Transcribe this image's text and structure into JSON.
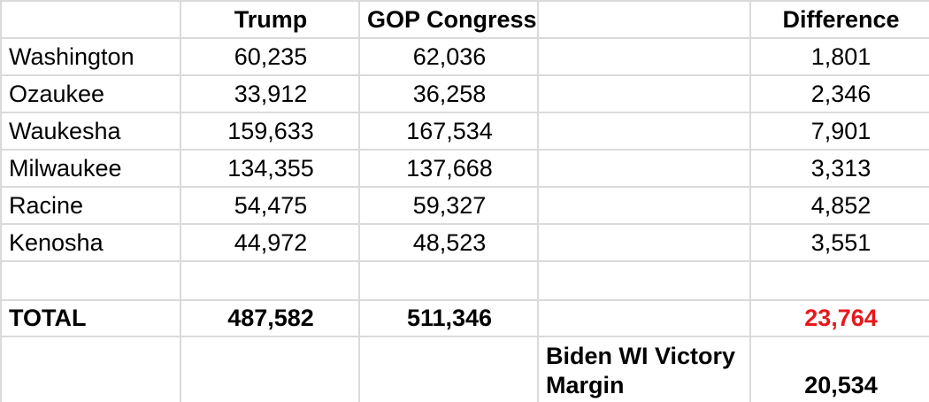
{
  "header": {
    "trump_label": "Trump",
    "gop_congress_label": "GOP Congress",
    "difference_label": "Difference"
  },
  "counties": [
    {
      "name": "Washington",
      "trump": "60,235",
      "gop_congress": "62,036",
      "difference": "1,801"
    },
    {
      "name": "Ozaukee",
      "trump": "33,912",
      "gop_congress": "36,258",
      "difference": "2,346"
    },
    {
      "name": "Waukesha",
      "trump": "159,633",
      "gop_congress": "167,534",
      "difference": "7,901"
    },
    {
      "name": "Milwaukee",
      "trump": "134,355",
      "gop_congress": "137,668",
      "difference": "3,313"
    },
    {
      "name": "Racine",
      "trump": "54,475",
      "gop_congress": "59,327",
      "difference": "4,852"
    },
    {
      "name": "Kenosha",
      "trump": "44,972",
      "gop_congress": "48,523",
      "difference": "3,551"
    }
  ],
  "total": {
    "label": "TOTAL",
    "trump": "487,582",
    "gop_congress": "511,346",
    "difference": "23,764"
  },
  "footer": {
    "note": "Biden WI Victory Margin",
    "value": "20,534"
  },
  "colors": {
    "grid_line": "#dadada",
    "total_difference_red": "#e5191d",
    "text": "#000000",
    "background": "#ffffff"
  }
}
